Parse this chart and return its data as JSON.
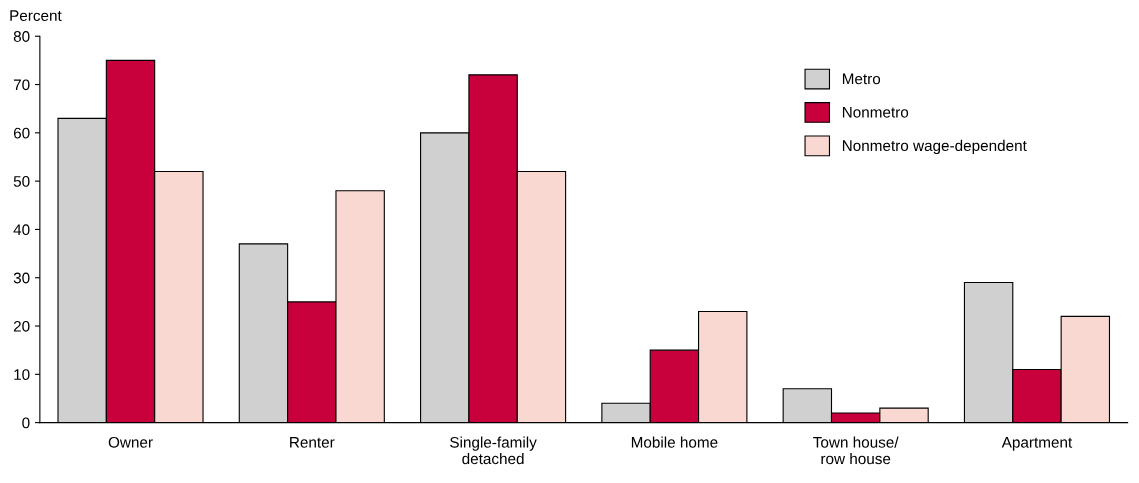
{
  "chart_data": {
    "type": "bar",
    "ylabel": "Percent",
    "categories": [
      "Owner",
      "Renter",
      "Single-family\ndetached",
      "Mobile home",
      "Town house/\nrow house",
      "Apartment"
    ],
    "series": [
      {
        "name": "Metro",
        "color": "#d0d0d0",
        "values": [
          63,
          37,
          60,
          4,
          7,
          29
        ]
      },
      {
        "name": "Nonmetro",
        "color": "#c8003c",
        "values": [
          75,
          25,
          72,
          15,
          2,
          11
        ]
      },
      {
        "name": "Nonmetro wage-dependent",
        "color": "#f8d8d0",
        "values": [
          52,
          48,
          52,
          23,
          3,
          22
        ]
      }
    ],
    "ylim": [
      0,
      80
    ],
    "yticks": [
      0,
      10,
      20,
      30,
      40,
      50,
      60,
      70,
      80
    ],
    "grid": false,
    "legend": "top right"
  }
}
